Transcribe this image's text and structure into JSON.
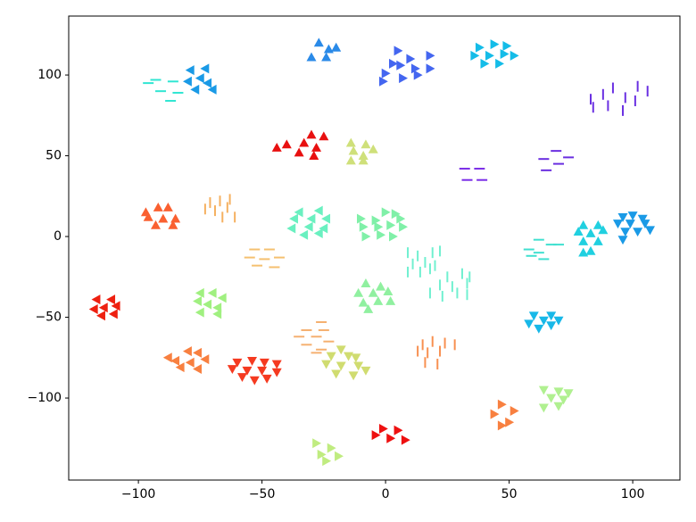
{
  "chart_data": {
    "type": "scatter",
    "xlim": [
      -128.2,
      119.1
    ],
    "ylim": [
      -150.8,
      136.5
    ],
    "xticks": [
      {
        "value": -100,
        "label": "−100"
      },
      {
        "value": -50,
        "label": "−50"
      },
      0,
      50,
      100
    ],
    "yticks": [
      {
        "value": -100,
        "label": "−100"
      },
      {
        "value": -50,
        "label": "−50"
      },
      0,
      50,
      100
    ],
    "series": [
      {
        "marker": "^",
        "color": "#2a8ae8",
        "x": [
          -27,
          -23,
          -20,
          -30,
          -24
        ],
        "y": [
          120,
          116,
          117,
          111,
          111
        ]
      },
      {
        "marker": ">",
        "color": "#4466f0",
        "x": [
          5,
          10,
          18,
          3,
          12,
          18,
          7,
          0,
          13,
          -1,
          6
        ],
        "y": [
          115,
          110,
          112,
          107,
          104,
          104,
          98,
          101,
          100,
          96,
          106
        ]
      },
      {
        "marker": ">",
        "color": "#14bce8",
        "x": [
          38,
          44,
          49,
          36,
          42,
          48,
          52,
          40,
          46
        ],
        "y": [
          117,
          119,
          118,
          112,
          112,
          113,
          112,
          107,
          107
        ]
      },
      {
        "marker": "|",
        "color": "#6a30e2",
        "x": [
          83,
          88,
          92,
          97,
          102,
          106,
          84,
          90,
          96,
          101
        ],
        "y": [
          85,
          88,
          92,
          86,
          93,
          90,
          80,
          81,
          78,
          84
        ]
      },
      {
        "marker": "_",
        "color": "#30e6d2",
        "x": [
          -93,
          -86,
          -91,
          -84,
          -87,
          -96
        ],
        "y": [
          97,
          96,
          90,
          89,
          84,
          95
        ]
      },
      {
        "marker": "<",
        "color": "#1a9ae6",
        "x": [
          -79,
          -73,
          -75,
          -72,
          -80,
          -77,
          -70
        ],
        "y": [
          103,
          104,
          98,
          95,
          96,
          91,
          91
        ]
      },
      {
        "marker": "^",
        "color": "#e81010",
        "x": [
          -30,
          -25,
          -40,
          -33,
          -28,
          -44,
          -35,
          -29
        ],
        "y": [
          63,
          62,
          57,
          58,
          55,
          55,
          52,
          50
        ]
      },
      {
        "marker": "^",
        "color": "#cfe07a",
        "x": [
          -14,
          -8,
          -5,
          -13,
          -9,
          -14,
          -9
        ],
        "y": [
          58,
          57,
          54,
          53,
          50,
          47,
          47
        ]
      },
      {
        "marker": "_",
        "color": "#7a2de8",
        "x": [
          32,
          38,
          33,
          39
        ],
        "y": [
          42,
          42,
          35,
          35
        ]
      },
      {
        "marker": "_",
        "color": "#6a2ee0",
        "x": [
          64,
          69,
          70,
          65,
          74
        ],
        "y": [
          48,
          53,
          45,
          41,
          49
        ]
      },
      {
        "marker": "^",
        "color": "#fa6030",
        "x": [
          -97,
          -92,
          -88,
          -96,
          -90,
          -85,
          -93,
          -86
        ],
        "y": [
          15,
          18,
          18,
          12,
          11,
          11,
          7,
          7
        ]
      },
      {
        "marker": "|",
        "color": "#f5b060",
        "x": [
          -71,
          -67,
          -63,
          -73,
          -69,
          -64,
          -66,
          -61
        ],
        "y": [
          21,
          22,
          23,
          17,
          16,
          18,
          12,
          12
        ]
      },
      {
        "marker": "<",
        "color": "#6af0c0",
        "x": [
          -35,
          -27,
          -37,
          -30,
          -24,
          -38,
          -31,
          -25,
          -33,
          -27
        ],
        "y": [
          15,
          16,
          11,
          11,
          11,
          5,
          6,
          5,
          1,
          2
        ]
      },
      {
        "marker": ">",
        "color": "#80f0a8",
        "x": [
          -10,
          -4,
          0,
          4,
          6,
          -9,
          -3,
          2,
          7,
          -8,
          -2,
          3
        ],
        "y": [
          11,
          10,
          15,
          14,
          11,
          6,
          6,
          7,
          6,
          0,
          1,
          0
        ]
      },
      {
        "marker": "^",
        "color": "#20d0e0",
        "x": [
          80,
          86,
          78,
          83,
          88,
          80,
          86,
          83,
          80
        ],
        "y": [
          7,
          7,
          3,
          2,
          4,
          -3,
          -3,
          -9,
          -10
        ]
      },
      {
        "marker": "v",
        "color": "#1a9ae6",
        "x": [
          96,
          100,
          104,
          94,
          99,
          105,
          97,
          102,
          107,
          96
        ],
        "y": [
          12,
          13,
          11,
          8,
          8,
          8,
          3,
          3,
          4,
          -2
        ]
      },
      {
        "marker": "_",
        "color": "#40e0d0",
        "x": [
          62,
          67,
          70,
          58,
          62,
          59,
          64
        ],
        "y": [
          -2,
          -5,
          -5,
          -8,
          -10,
          -12,
          -14
        ]
      },
      {
        "marker": "_",
        "color": "#f5c070",
        "x": [
          -53,
          -47,
          -55,
          -49,
          -43,
          -52,
          -45
        ],
        "y": [
          -8,
          -8,
          -13,
          -14,
          -13,
          -18,
          -19
        ]
      },
      {
        "marker": "|",
        "color": "#70f0d0",
        "x": [
          9,
          13,
          19,
          22,
          11,
          16,
          20,
          9,
          14,
          18
        ],
        "y": [
          -10,
          -12,
          -10,
          -9,
          -17,
          -16,
          -18,
          -22,
          -22,
          -20
        ]
      },
      {
        "marker": "|",
        "color": "#70f0d0",
        "x": [
          25,
          31,
          34,
          22,
          27,
          33,
          18,
          23,
          29,
          33
        ],
        "y": [
          -25,
          -23,
          -25,
          -30,
          -31,
          -29,
          -35,
          -37,
          -35,
          -36
        ]
      },
      {
        "marker": "<",
        "color": "#a0f080",
        "x": [
          -75,
          -70,
          -66,
          -76,
          -72,
          -68,
          -75,
          -68
        ],
        "y": [
          -35,
          -35,
          -38,
          -40,
          -42,
          -44,
          -47,
          -48
        ]
      },
      {
        "marker": "^",
        "color": "#90f0a0",
        "x": [
          -8,
          -2,
          -11,
          -5,
          1,
          -9,
          -3,
          2,
          -7
        ],
        "y": [
          -29,
          -31,
          -35,
          -35,
          -34,
          -41,
          -40,
          -40,
          -45
        ]
      },
      {
        "marker": "<",
        "color": "#ee2010",
        "x": [
          -117,
          -111,
          -114,
          -109,
          -118,
          -110,
          -115
        ],
        "y": [
          -39,
          -39,
          -44,
          -43,
          -45,
          -48,
          -49
        ]
      },
      {
        "marker": "v",
        "color": "#18b8e8",
        "x": [
          60,
          67,
          64,
          70,
          58,
          62,
          67
        ],
        "y": [
          -49,
          -49,
          -52,
          -52,
          -54,
          -57,
          -55
        ]
      },
      {
        "marker": "_",
        "color": "#f5b070",
        "x": [
          -26,
          -32,
          -25,
          -35,
          -28,
          -23,
          -32,
          -26,
          -28
        ],
        "y": [
          -53,
          -58,
          -58,
          -62,
          -62,
          -65,
          -67,
          -70,
          -72
        ]
      },
      {
        "marker": "v",
        "color": "#d0dc70",
        "x": [
          -18,
          -22,
          -15,
          -12,
          -24,
          -18,
          -11,
          -20,
          -13,
          -8
        ],
        "y": [
          -70,
          -74,
          -74,
          -75,
          -79,
          -80,
          -80,
          -85,
          -86,
          -83
        ]
      },
      {
        "marker": "<",
        "color": "#f88040",
        "x": [
          -88,
          -80,
          -76,
          -85,
          -79,
          -73,
          -83,
          -76
        ],
        "y": [
          -75,
          -71,
          -72,
          -77,
          -78,
          -76,
          -81,
          -82
        ]
      },
      {
        "marker": "v",
        "color": "#f53a20",
        "x": [
          -60,
          -54,
          -49,
          -44,
          -62,
          -56,
          -50,
          -44,
          -58,
          -53,
          -48
        ],
        "y": [
          -78,
          -77,
          -78,
          -79,
          -82,
          -83,
          -83,
          -84,
          -87,
          -89,
          -88
        ]
      },
      {
        "marker": "|",
        "color": "#f89050",
        "x": [
          15,
          19,
          24,
          28,
          13,
          17,
          22,
          16,
          21
        ],
        "y": [
          -67,
          -65,
          -66,
          -67,
          -71,
          -72,
          -71,
          -78,
          -79
        ]
      },
      {
        "marker": "v",
        "color": "#b0f090",
        "x": [
          64,
          70,
          74,
          67,
          72,
          64,
          70
        ],
        "y": [
          -95,
          -96,
          -97,
          -100,
          -101,
          -106,
          -105
        ]
      },
      {
        "marker": ">",
        "color": "#f88040",
        "x": [
          47,
          52,
          44,
          50,
          47
        ],
        "y": [
          -104,
          -108,
          -110,
          -115,
          -117
        ]
      },
      {
        "marker": ">",
        "color": "#ee1010",
        "x": [
          -1,
          5,
          -4,
          2,
          8
        ],
        "y": [
          -119,
          -120,
          -123,
          -125,
          -126
        ]
      },
      {
        "marker": ">",
        "color": "#c0ec80",
        "x": [
          -28,
          -22,
          -26,
          -19,
          -24
        ],
        "y": [
          -128,
          -131,
          -135,
          -136,
          -139
        ]
      }
    ]
  }
}
